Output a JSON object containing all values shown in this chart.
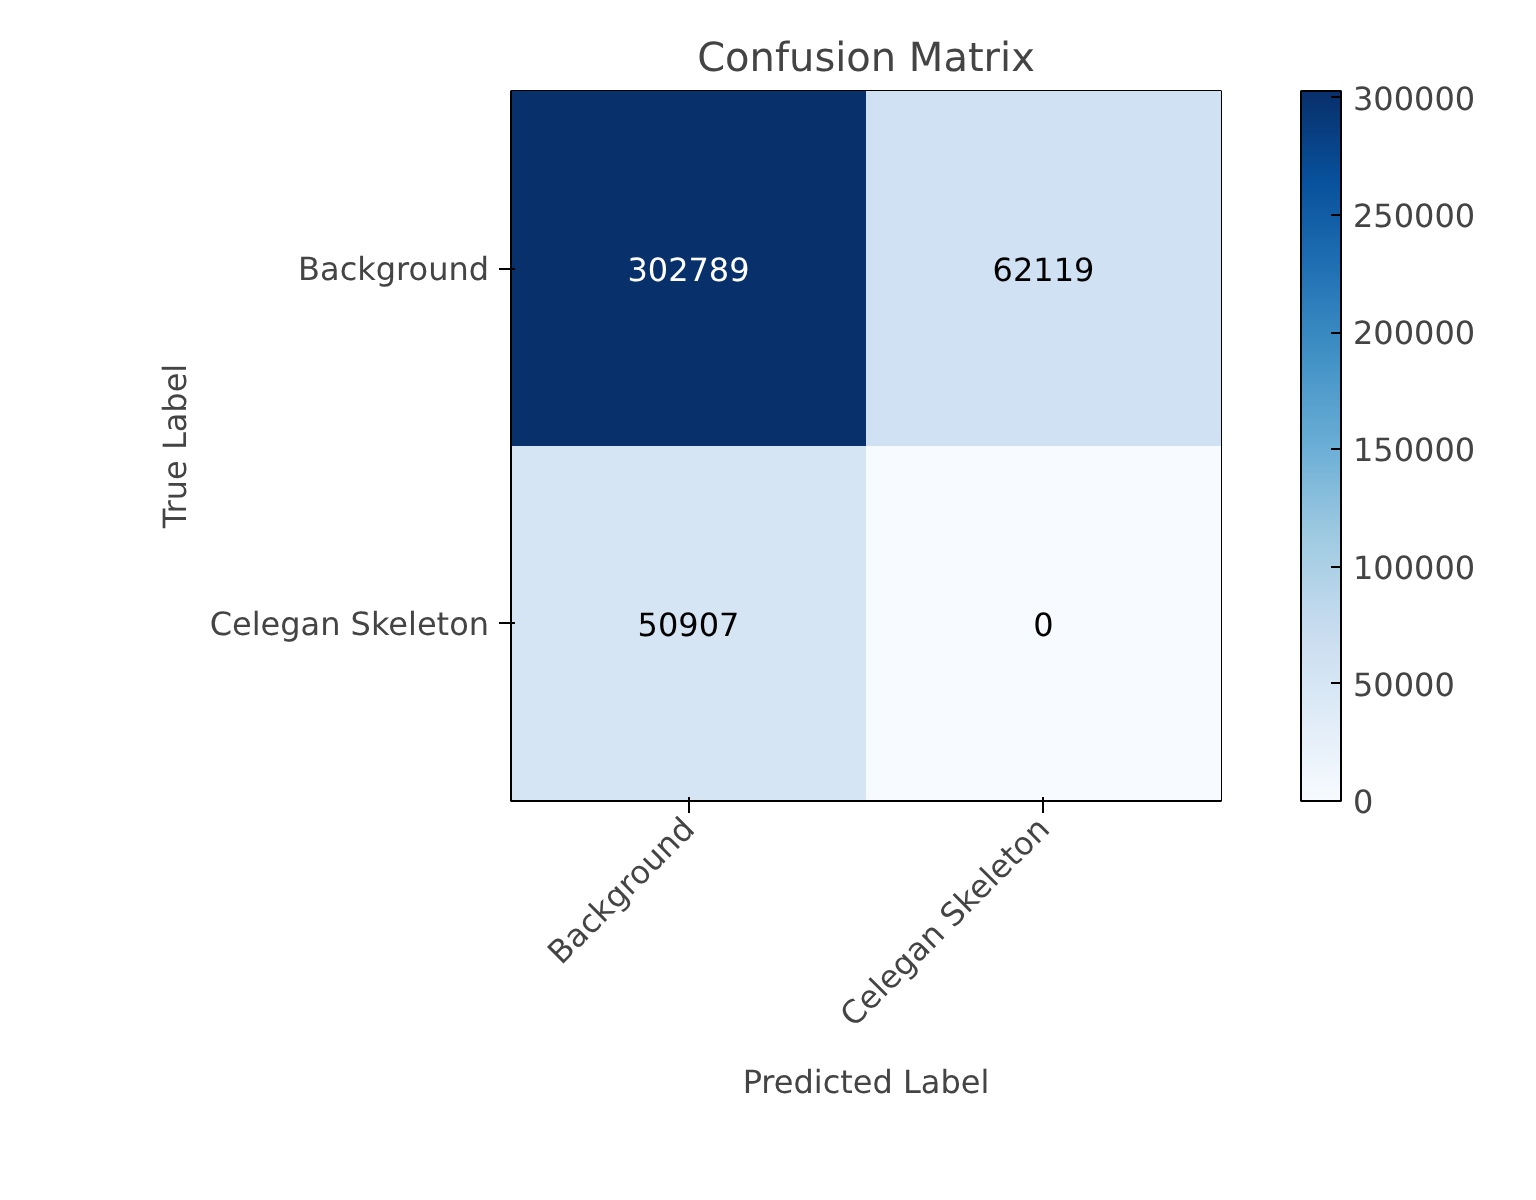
{
  "chart_data": {
    "type": "heatmap",
    "title": "Confusion Matrix",
    "xlabel": "Predicted Label",
    "ylabel": "True Label",
    "clabel": null,
    "categories": [
      "Background",
      "Celegan Skeleton"
    ],
    "y_categories": [
      "Background",
      "Celegan Skeleton"
    ],
    "cells": [
      [
        302789,
        62119
      ],
      [
        50907,
        0
      ]
    ],
    "data_labels": true,
    "clim": [
      0,
      302789
    ],
    "cticks": [
      0,
      50000,
      100000,
      150000,
      200000,
      250000,
      300000
    ]
  }
}
